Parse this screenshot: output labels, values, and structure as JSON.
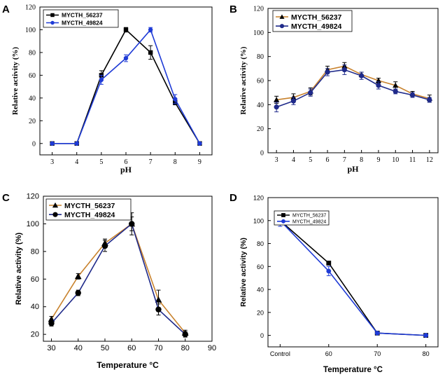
{
  "figure": {
    "panels": [
      "A",
      "B",
      "C",
      "D"
    ]
  },
  "colors": {
    "series_56237_ab": "#000000",
    "series_49824_ab": "#1f3bd6",
    "series_56237_bc": "#c8822d",
    "series_49824_bc": "#1f2a8a",
    "series_56237_d": "#000000",
    "series_49824_d": "#1f3bd6"
  },
  "chart_data": [
    {
      "panel": "A",
      "type": "line",
      "xlabel": "pH",
      "ylabel": "Relative activity (%)",
      "x": [
        3,
        4,
        5,
        6,
        7,
        8,
        9
      ],
      "xticks": [
        "3",
        "4",
        "5",
        "6",
        "7",
        "8",
        "9"
      ],
      "xlim": [
        2.5,
        9.5
      ],
      "ylim": [
        -10,
        120
      ],
      "yticks": [
        0,
        20,
        40,
        60,
        80,
        100,
        120
      ],
      "legend_position": "top-left",
      "series": [
        {
          "name": "MYCTH_56237",
          "marker": "square",
          "values": [
            0,
            0,
            60,
            100,
            80,
            36,
            0
          ],
          "errors": [
            0,
            0,
            4,
            2,
            6,
            2,
            0
          ]
        },
        {
          "name": "MYCTH_49824",
          "marker": "circle",
          "values": [
            0,
            0,
            56,
            75,
            100,
            39,
            0
          ],
          "errors": [
            0,
            0,
            4,
            3,
            2,
            4,
            0
          ]
        }
      ]
    },
    {
      "panel": "B",
      "type": "line",
      "xlabel": "pH",
      "ylabel": "Relative activity (%)",
      "x": [
        3,
        4,
        5,
        6,
        7,
        8,
        9,
        10,
        11,
        12
      ],
      "xticks": [
        "3",
        "4",
        "5",
        "6",
        "7",
        "8",
        "9",
        "10",
        "11",
        "12"
      ],
      "xlim": [
        2.5,
        12.5
      ],
      "ylim": [
        0,
        120
      ],
      "yticks": [
        0,
        20,
        40,
        60,
        80,
        100,
        120
      ],
      "legend_position": "top-left",
      "series": [
        {
          "name": "MYCTH_56237",
          "marker": "triangle",
          "values": [
            44,
            46,
            51,
            69,
            72,
            65,
            60,
            56,
            49,
            45
          ],
          "errors": [
            3,
            3,
            3,
            3,
            3,
            2,
            2,
            3,
            2,
            3
          ]
        },
        {
          "name": "MYCTH_49824",
          "marker": "circle",
          "values": [
            38,
            43,
            50,
            67,
            69,
            64,
            56,
            51,
            48,
            44
          ],
          "errors": [
            4,
            3,
            3,
            3,
            4,
            3,
            3,
            2,
            2,
            2
          ]
        }
      ]
    },
    {
      "panel": "C",
      "type": "line",
      "xlabel": "Temperature °C",
      "ylabel": "Relative activity (%)",
      "x": [
        30,
        40,
        50,
        60,
        70,
        80
      ],
      "xticks": [
        "30",
        "40",
        "50",
        "60",
        "70",
        "80",
        "90"
      ],
      "xtick_values": [
        30,
        40,
        50,
        60,
        70,
        80,
        90
      ],
      "xlim": [
        27,
        90
      ],
      "ylim": [
        15,
        120
      ],
      "yticks": [
        20,
        40,
        60,
        80,
        100,
        120
      ],
      "legend_position": "top-left",
      "series": [
        {
          "name": "MYCTH_56237",
          "marker": "triangle",
          "values": [
            31,
            62,
            86,
            100,
            45,
            21
          ],
          "errors": [
            2,
            2,
            3,
            5,
            7,
            2
          ]
        },
        {
          "name": "MYCTH_49824",
          "marker": "circle",
          "values": [
            28,
            50,
            84,
            100,
            38,
            20
          ],
          "errors": [
            2,
            2,
            4,
            8,
            4,
            2
          ]
        }
      ]
    },
    {
      "panel": "D",
      "type": "line",
      "xlabel": "Temperature °C",
      "ylabel": "Relative activity (%)",
      "categories": [
        "Control",
        "60",
        "70",
        "80"
      ],
      "xlim": [
        0.75,
        4.25
      ],
      "ylim": [
        -10,
        120
      ],
      "yticks": [
        0,
        20,
        40,
        60,
        80,
        100,
        120
      ],
      "legend_position": "top-left",
      "series": [
        {
          "name": "MYCTH_56237",
          "marker": "square",
          "values": [
            100,
            63,
            2,
            0
          ],
          "errors": [
            2,
            1,
            0,
            0
          ]
        },
        {
          "name": "MYCTH_49824",
          "marker": "circle",
          "values": [
            100,
            56,
            2,
            0
          ],
          "errors": [
            5,
            4,
            0,
            0
          ]
        }
      ]
    }
  ]
}
